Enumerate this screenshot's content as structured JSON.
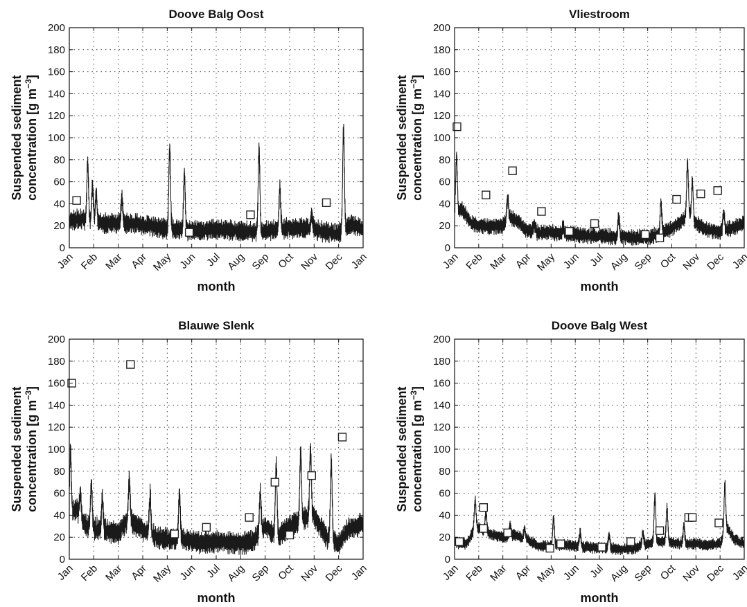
{
  "figure": {
    "months_axis": [
      "Jan",
      "Feb",
      "Mar",
      "Apr",
      "May",
      "Jun",
      "Jul",
      "Aug",
      "Sep",
      "Oct",
      "Nov",
      "Dec",
      "Jan"
    ]
  },
  "chart_data": [
    {
      "type": "line",
      "title": "Doove Balg Oost",
      "xlabel": "month",
      "ylabel_line1": "Suspended sediment",
      "ylabel_line2": "concentration [g m",
      "ylabel_sup": "−3",
      "ylabel_end": "]",
      "ylim": [
        0,
        200
      ],
      "yticks": [
        0,
        20,
        40,
        60,
        80,
        100,
        120,
        140,
        160,
        180,
        200
      ],
      "xlim": [
        0,
        12
      ],
      "grid": true,
      "model_series": {
        "base": [
          [
            0,
            25
          ],
          [
            0.5,
            26
          ],
          [
            1,
            24
          ],
          [
            1.5,
            22
          ],
          [
            2,
            23
          ],
          [
            2.5,
            22
          ],
          [
            3,
            21
          ],
          [
            3.5,
            19
          ],
          [
            4,
            17
          ],
          [
            4.5,
            16
          ],
          [
            5,
            16
          ],
          [
            5.5,
            16
          ],
          [
            6,
            17
          ],
          [
            6.5,
            16
          ],
          [
            7,
            15
          ],
          [
            7.5,
            15
          ],
          [
            8,
            15
          ],
          [
            8.5,
            17
          ],
          [
            9,
            18
          ],
          [
            9.5,
            18
          ],
          [
            10,
            17
          ],
          [
            10.5,
            14
          ],
          [
            11,
            13
          ],
          [
            11.3,
            18
          ],
          [
            11.6,
            22
          ],
          [
            12,
            16
          ]
        ],
        "peaks": [
          [
            0.75,
            77
          ],
          [
            0.95,
            56
          ],
          [
            1.1,
            48
          ],
          [
            2.15,
            46
          ],
          [
            4.1,
            92
          ],
          [
            4.7,
            68
          ],
          [
            7.75,
            90
          ],
          [
            8.6,
            54
          ],
          [
            9.9,
            30
          ],
          [
            11.2,
            108
          ]
        ],
        "amplitude": 9
      },
      "observations": [
        [
          0.3,
          43
        ],
        [
          4.9,
          14
        ],
        [
          7.4,
          30
        ],
        [
          10.5,
          41
        ]
      ]
    },
    {
      "type": "line",
      "title": "Vliestroom",
      "xlabel": "month",
      "ylabel_line1": "Suspended sediment",
      "ylabel_line2": "concentration [g m",
      "ylabel_sup": "−3",
      "ylabel_end": "]",
      "ylim": [
        0,
        200
      ],
      "yticks": [
        0,
        20,
        40,
        60,
        80,
        100,
        120,
        140,
        160,
        180,
        200
      ],
      "xlim": [
        0,
        12
      ],
      "grid": true,
      "model_series": {
        "base": [
          [
            0,
            30
          ],
          [
            0.3,
            35
          ],
          [
            0.7,
            22
          ],
          [
            1,
            20
          ],
          [
            1.5,
            19
          ],
          [
            2,
            20
          ],
          [
            2.3,
            28
          ],
          [
            2.7,
            22
          ],
          [
            3,
            16
          ],
          [
            3.5,
            14
          ],
          [
            4,
            14
          ],
          [
            4.5,
            13
          ],
          [
            5,
            12
          ],
          [
            5.5,
            11
          ],
          [
            6,
            11
          ],
          [
            6.5,
            10
          ],
          [
            7,
            10
          ],
          [
            7.5,
            9
          ],
          [
            8,
            10
          ],
          [
            8.5,
            12
          ],
          [
            9,
            18
          ],
          [
            9.4,
            24
          ],
          [
            9.7,
            30
          ],
          [
            10,
            22
          ],
          [
            10.5,
            16
          ],
          [
            11,
            15
          ],
          [
            11.5,
            18
          ],
          [
            12,
            22
          ]
        ],
        "peaks": [
          [
            0.08,
            82
          ],
          [
            2.2,
            46
          ],
          [
            3.3,
            22
          ],
          [
            4.5,
            20
          ],
          [
            6.8,
            28
          ],
          [
            8.55,
            41
          ],
          [
            9.65,
            78
          ],
          [
            9.85,
            60
          ],
          [
            11.15,
            32
          ]
        ],
        "amplitude": 7
      },
      "observations": [
        [
          0.1,
          110
        ],
        [
          1.3,
          48
        ],
        [
          2.4,
          70
        ],
        [
          3.6,
          33
        ],
        [
          4.75,
          15
        ],
        [
          5.8,
          22
        ],
        [
          7.9,
          12
        ],
        [
          8.5,
          9
        ],
        [
          9.2,
          44
        ],
        [
          10.2,
          49
        ],
        [
          10.9,
          52
        ]
      ]
    },
    {
      "type": "line",
      "title": "Blauwe Slenk",
      "xlabel": "month",
      "ylabel_line1": "Suspended sediment",
      "ylabel_line2": "concentration [g m",
      "ylabel_sup": "−3",
      "ylabel_end": "]",
      "ylim": [
        0,
        200
      ],
      "yticks": [
        0,
        20,
        40,
        60,
        80,
        100,
        120,
        140,
        160,
        180,
        200
      ],
      "xlim": [
        0,
        12
      ],
      "grid": true,
      "model_series": {
        "base": [
          [
            0,
            40
          ],
          [
            0.3,
            45
          ],
          [
            0.6,
            32
          ],
          [
            1,
            28
          ],
          [
            1.5,
            26
          ],
          [
            2,
            24
          ],
          [
            2.4,
            36
          ],
          [
            2.8,
            30
          ],
          [
            3.2,
            24
          ],
          [
            3.6,
            20
          ],
          [
            4,
            18
          ],
          [
            4.5,
            19
          ],
          [
            5,
            16
          ],
          [
            5.5,
            15
          ],
          [
            6,
            16
          ],
          [
            6.5,
            15
          ],
          [
            7,
            15
          ],
          [
            7.5,
            16
          ],
          [
            8,
            30
          ],
          [
            8.5,
            20
          ],
          [
            9,
            30
          ],
          [
            9.5,
            36
          ],
          [
            10,
            40
          ],
          [
            10.5,
            20
          ],
          [
            11,
            14
          ],
          [
            11.4,
            28
          ],
          [
            11.7,
            30
          ],
          [
            12,
            32
          ]
        ],
        "peaks": [
          [
            0.05,
            97
          ],
          [
            0.45,
            62
          ],
          [
            0.9,
            70
          ],
          [
            1.35,
            55
          ],
          [
            2.45,
            72
          ],
          [
            3.3,
            58
          ],
          [
            4.5,
            60
          ],
          [
            7.8,
            62
          ],
          [
            8.45,
            86
          ],
          [
            9.45,
            98
          ],
          [
            9.85,
            100
          ],
          [
            10.7,
            90
          ]
        ],
        "amplitude": 10
      },
      "observations": [
        [
          0.1,
          160
        ],
        [
          2.5,
          177
        ],
        [
          4.3,
          23
        ],
        [
          5.6,
          29
        ],
        [
          7.35,
          38
        ],
        [
          8.4,
          70
        ],
        [
          9.0,
          22
        ],
        [
          9.9,
          76
        ],
        [
          11.15,
          111
        ]
      ]
    },
    {
      "type": "line",
      "title": "Doove Balg West",
      "xlabel": "month",
      "ylabel_line1": "Suspended sediment",
      "ylabel_line2": "concentration [g m",
      "ylabel_sup": "−3",
      "ylabel_end": "]",
      "ylim": [
        0,
        200
      ],
      "yticks": [
        0,
        20,
        40,
        60,
        80,
        100,
        120,
        140,
        160,
        180,
        200
      ],
      "xlim": [
        0,
        12
      ],
      "grid": true,
      "model_series": {
        "base": [
          [
            0,
            15
          ],
          [
            0.5,
            14
          ],
          [
            0.9,
            30
          ],
          [
            1.2,
            26
          ],
          [
            1.6,
            22
          ],
          [
            2,
            20
          ],
          [
            2.5,
            22
          ],
          [
            3,
            18
          ],
          [
            3.5,
            12
          ],
          [
            4,
            12
          ],
          [
            4.5,
            13
          ],
          [
            5,
            12
          ],
          [
            5.5,
            11
          ],
          [
            6,
            10
          ],
          [
            6.5,
            10
          ],
          [
            7,
            9
          ],
          [
            7.5,
            10
          ],
          [
            8,
            14
          ],
          [
            8.5,
            16
          ],
          [
            9,
            15
          ],
          [
            9.5,
            14
          ],
          [
            10,
            14
          ],
          [
            10.5,
            13
          ],
          [
            11,
            14
          ],
          [
            11.3,
            28
          ],
          [
            11.6,
            18
          ],
          [
            12,
            14
          ]
        ],
        "peaks": [
          [
            0.85,
            53
          ],
          [
            1.3,
            42
          ],
          [
            2.3,
            32
          ],
          [
            2.9,
            28
          ],
          [
            4.1,
            38
          ],
          [
            5.2,
            24
          ],
          [
            6.4,
            22
          ],
          [
            7.8,
            24
          ],
          [
            8.3,
            59
          ],
          [
            8.8,
            46
          ],
          [
            9.5,
            30
          ],
          [
            11.2,
            68
          ]
        ],
        "amplitude": 5
      },
      "observations": [
        [
          0.2,
          16
        ],
        [
          1.2,
          47
        ],
        [
          1.2,
          28
        ],
        [
          2.2,
          24
        ],
        [
          3.95,
          10
        ],
        [
          4.4,
          14
        ],
        [
          6.1,
          11
        ],
        [
          7.3,
          16
        ],
        [
          8.5,
          26
        ],
        [
          9.7,
          38
        ],
        [
          9.85,
          38
        ],
        [
          10.95,
          33
        ]
      ]
    }
  ]
}
